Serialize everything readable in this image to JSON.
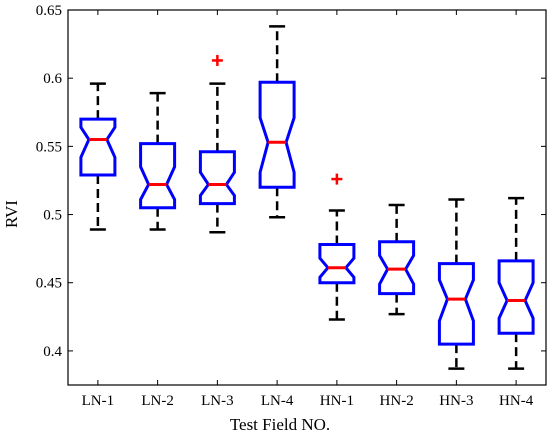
{
  "chart_data": {
    "type": "box",
    "xlabel": "Test Field NO.",
    "ylabel": "RVI",
    "ylim": [
      0.375,
      0.65
    ],
    "yticks": [
      0.4,
      0.45,
      0.5,
      0.55,
      0.6,
      0.65
    ],
    "ytick_labels": [
      "0.4",
      "0.45",
      "0.5",
      "0.55",
      "0.6",
      "0.65"
    ],
    "notched": true,
    "grid": false,
    "colors": {
      "box": "#0000ff",
      "median": "#ff0000",
      "whisker": "#000000",
      "outlier": "#ff0000"
    },
    "categories": [
      "LN-1",
      "LN-2",
      "LN-3",
      "LN-4",
      "HN-1",
      "HN-2",
      "HN-3",
      "HN-4"
    ],
    "boxes": [
      {
        "label": "LN-1",
        "lower_whisker": 0.489,
        "q1": 0.529,
        "notch_low": 0.542,
        "median": 0.555,
        "notch_high": 0.564,
        "q3": 0.57,
        "upper_whisker": 0.596,
        "outliers": []
      },
      {
        "label": "LN-2",
        "lower_whisker": 0.489,
        "q1": 0.505,
        "notch_low": 0.511,
        "median": 0.522,
        "notch_high": 0.535,
        "q3": 0.552,
        "upper_whisker": 0.589,
        "outliers": []
      },
      {
        "label": "LN-3",
        "lower_whisker": 0.487,
        "q1": 0.508,
        "notch_low": 0.514,
        "median": 0.522,
        "notch_high": 0.531,
        "q3": 0.546,
        "upper_whisker": 0.596,
        "outliers": [
          0.613
        ]
      },
      {
        "label": "LN-4",
        "lower_whisker": 0.498,
        "q1": 0.52,
        "notch_low": 0.531,
        "median": 0.553,
        "notch_high": 0.571,
        "q3": 0.597,
        "upper_whisker": 0.638,
        "outliers": []
      },
      {
        "label": "HN-1",
        "lower_whisker": 0.423,
        "q1": 0.45,
        "notch_low": 0.454,
        "median": 0.461,
        "notch_high": 0.468,
        "q3": 0.478,
        "upper_whisker": 0.503,
        "outliers": [
          0.526
        ]
      },
      {
        "label": "HN-2",
        "lower_whisker": 0.427,
        "q1": 0.442,
        "notch_low": 0.449,
        "median": 0.46,
        "notch_high": 0.47,
        "q3": 0.48,
        "upper_whisker": 0.507,
        "outliers": []
      },
      {
        "label": "HN-3",
        "lower_whisker": 0.387,
        "q1": 0.405,
        "notch_low": 0.422,
        "median": 0.438,
        "notch_high": 0.452,
        "q3": 0.464,
        "upper_whisker": 0.511,
        "outliers": []
      },
      {
        "label": "HN-4",
        "lower_whisker": 0.387,
        "q1": 0.413,
        "notch_low": 0.424,
        "median": 0.437,
        "notch_high": 0.45,
        "q3": 0.466,
        "upper_whisker": 0.512,
        "outliers": []
      }
    ]
  }
}
